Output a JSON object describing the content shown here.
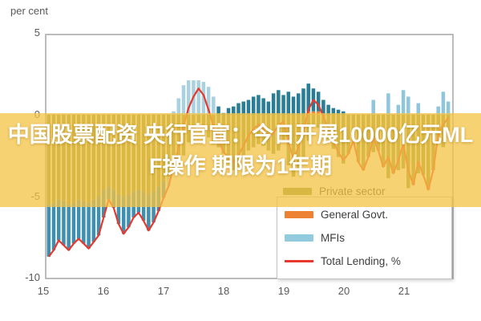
{
  "unit_label": "per cent",
  "headline": {
    "line1": "中国股票配资 央行官宣：今日开展10000亿元ML",
    "line2": "F操作 期限为1年期"
  },
  "legend": {
    "private": "Private sector",
    "govt": "General Govt.",
    "mfis": "MFIs",
    "total": "Total Lending, %"
  },
  "colors": {
    "private": "#84923E",
    "govt": "#ED8235",
    "mfis_early": "#3E8FB0",
    "mfis_light": "#A9D1E0",
    "mfis_dark": "#2A7D96",
    "mfis_late": "#8FC6DB",
    "line": "#E8382D",
    "banner": "rgba(245,196,70,0.76)",
    "frame": "#ABABAB",
    "zero_line": "#C9C9C9",
    "tick_text": "#595959",
    "legend_private_swatch": "#7E8F3D",
    "legend_govt_swatch": "#ED8235",
    "legend_mfis_swatch": "#92CBDE",
    "legend_line_swatch": "#E8382D"
  },
  "chart_data": {
    "type": "bar",
    "subtype": "stacked-bars-with-line",
    "title": "",
    "ylabel": "per cent",
    "ylim": [
      -10,
      5
    ],
    "yticks": [
      "5",
      "0",
      "-5",
      "-10"
    ],
    "ytick_values": [
      5,
      0,
      -5,
      -10
    ],
    "xticks": [
      "15",
      "16",
      "17",
      "18",
      "19",
      "20",
      "21"
    ],
    "x_start": "2015-01",
    "freq": "monthly",
    "grid": "off",
    "legend_position": "bottom-right",
    "series": [
      {
        "name": "Private sector",
        "role": "bar",
        "values": [
          -5.5,
          -5.4,
          -5.2,
          -5.3,
          -5.5,
          -5.4,
          -5.2,
          -5.3,
          -5.4,
          -5.2,
          -5.0,
          -4.6,
          -4.4,
          -4.6,
          -4.9,
          -5.0,
          -4.9,
          -4.7,
          -4.6,
          -4.7,
          -4.9,
          -4.7,
          -4.4,
          -4.1,
          -3.8,
          -3.4,
          -3.0,
          -2.5,
          -1.7,
          -1.0,
          -0.5,
          -0.8,
          -1.4,
          -1.8,
          -2.0,
          -2.4,
          -3.0,
          -3.4,
          -3.2,
          -2.7,
          -2.2,
          -2.0,
          -1.8,
          -1.9,
          -2.2,
          -2.4,
          -2.2,
          -1.6,
          -3.1,
          -3.8,
          -3.3,
          -2.6,
          -1.6,
          -0.7,
          -0.8,
          -1.0,
          -1.5,
          -2.1,
          -2.6,
          -3.0,
          -2.4,
          -1.6,
          -2.9,
          -3.4,
          -2.6,
          -2.3,
          -2.2,
          -3.2,
          -3.9,
          -3.6,
          -3.4,
          -3.3,
          -4.5,
          -4.3,
          -3.6,
          -3.7,
          -4.6,
          -3.4,
          -1.7,
          -2.0,
          -1.0
        ]
      },
      {
        "name": "General Govt.",
        "role": "bar",
        "values": [
          0,
          0,
          0,
          0,
          0,
          0,
          0,
          0,
          0,
          0,
          0,
          0,
          0,
          0,
          0,
          0,
          0,
          0,
          0,
          0,
          0,
          0,
          0,
          0,
          0,
          0,
          0,
          0,
          0,
          0,
          0,
          0,
          0,
          0,
          0,
          0,
          0,
          0,
          0,
          0,
          0,
          0,
          0,
          0,
          0,
          0,
          0,
          0,
          0,
          0,
          0,
          0,
          0.2,
          0.2,
          0.2,
          0,
          0,
          0,
          0,
          0,
          0,
          0,
          0,
          0,
          0,
          0,
          0,
          0,
          0,
          0,
          0,
          0,
          0,
          0,
          0,
          0,
          0,
          0,
          0,
          0,
          0
        ]
      },
      {
        "name": "MFIs",
        "role": "bar",
        "values": [
          -3.2,
          -2.9,
          -2.5,
          -2.7,
          -2.8,
          -2.5,
          -2.4,
          -2.6,
          -2.8,
          -2.6,
          -2.4,
          -1.7,
          -0.8,
          -1.1,
          -1.8,
          -2.3,
          -2.0,
          -1.6,
          -1.4,
          -1.8,
          -2.2,
          -1.9,
          -1.5,
          -1.0,
          -0.6,
          0.2,
          1.0,
          1.8,
          2.1,
          2.1,
          2.1,
          2.0,
          1.7,
          1.1,
          0.5,
          0.1,
          0.4,
          0.5,
          0.7,
          0.8,
          0.9,
          1.1,
          1.2,
          1.0,
          0.8,
          1.3,
          1.5,
          1.2,
          1.4,
          1.1,
          1.3,
          1.6,
          1.7,
          1.4,
          1.2,
          0.9,
          0.6,
          0.4,
          0.3,
          0.2,
          0,
          0,
          0,
          0,
          0,
          0.9,
          0,
          0,
          1.3,
          0,
          0.6,
          1.5,
          1.1,
          0,
          0.7,
          0,
          0,
          0,
          0.5,
          1.4,
          0.8
        ]
      },
      {
        "name": "Total Lending, %",
        "role": "line",
        "values": [
          -8.7,
          -8.3,
          -7.7,
          -8.0,
          -8.3,
          -7.9,
          -7.6,
          -7.9,
          -8.2,
          -7.8,
          -7.4,
          -6.3,
          -5.2,
          -5.7,
          -6.7,
          -7.3,
          -6.9,
          -6.3,
          -6.0,
          -6.5,
          -7.1,
          -6.6,
          -5.9,
          -5.1,
          -4.4,
          -3.2,
          -2.0,
          -0.7,
          0.4,
          1.1,
          1.6,
          1.2,
          0.3,
          -0.7,
          -1.5,
          -2.3,
          -2.6,
          -2.9,
          -2.5,
          -1.9,
          -1.3,
          -0.9,
          -0.6,
          -0.9,
          -1.4,
          -1.1,
          -0.7,
          -0.4,
          -1.7,
          -2.7,
          -2.0,
          -1.0,
          0.3,
          0.9,
          0.6,
          -0.1,
          -0.9,
          -1.7,
          -2.3,
          -2.8,
          -2.4,
          -1.6,
          -2.9,
          -3.4,
          -2.6,
          -1.4,
          -2.2,
          -3.2,
          -2.6,
          -3.6,
          -2.8,
          -1.8,
          -3.4,
          -4.3,
          -2.9,
          -3.7,
          -4.6,
          -3.4,
          -1.2,
          -0.6,
          -0.2
        ]
      }
    ]
  }
}
